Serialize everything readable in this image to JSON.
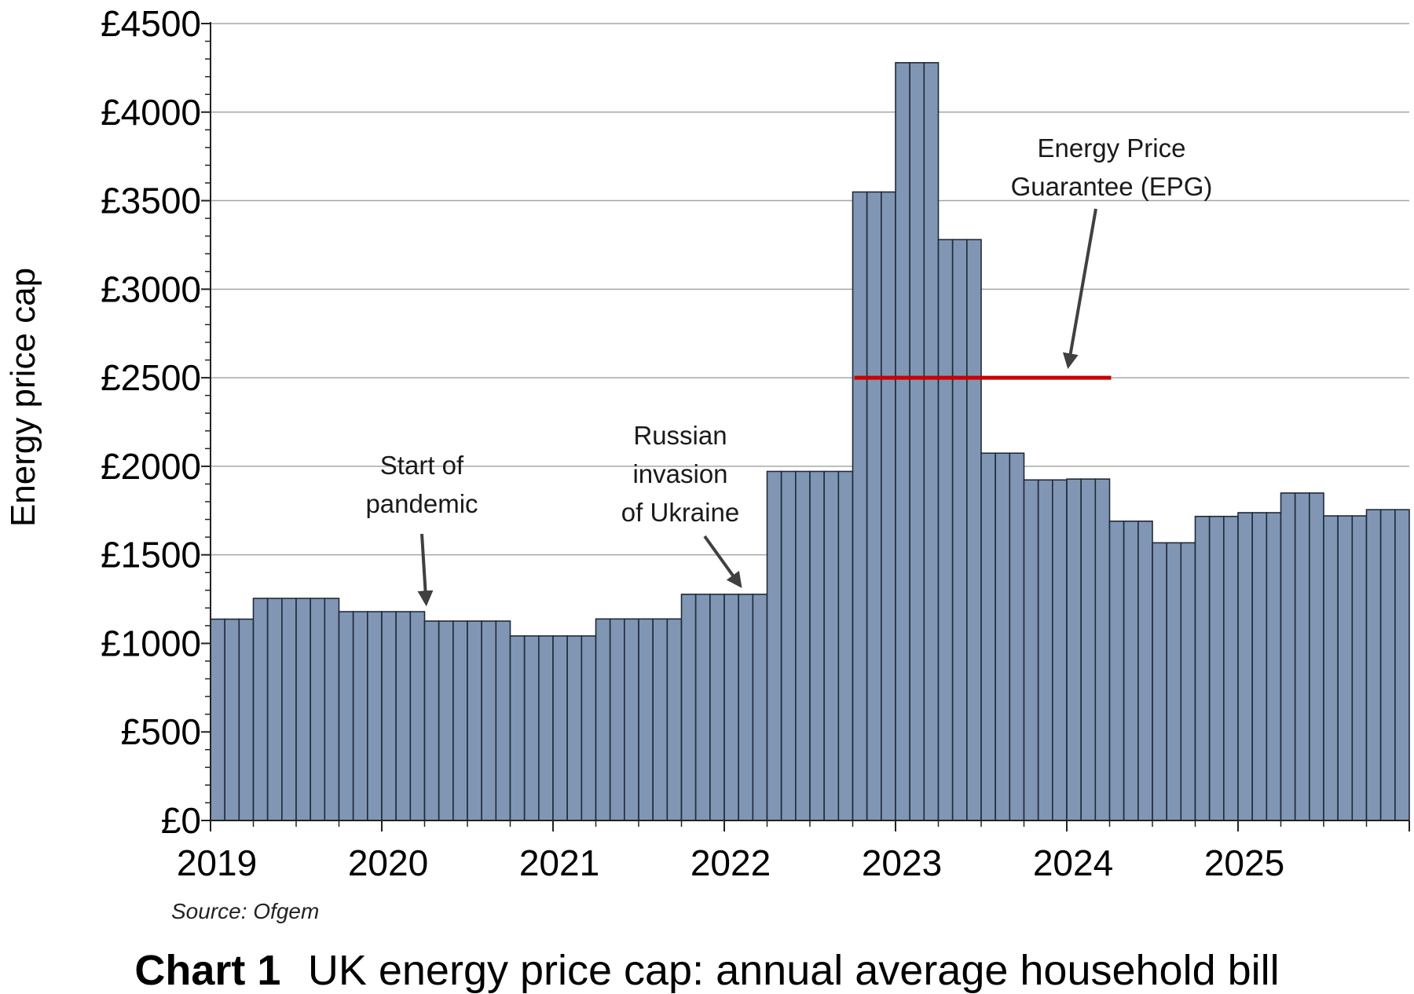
{
  "chart_data": {
    "type": "bar",
    "ylabel": "Energy price cap",
    "ylim": [
      0,
      4500
    ],
    "y_ticks": [
      {
        "value": 0,
        "label": "£0"
      },
      {
        "value": 500,
        "label": "£500"
      },
      {
        "value": 1000,
        "label": "£1000"
      },
      {
        "value": 1500,
        "label": "£1500"
      },
      {
        "value": 2000,
        "label": "£2000"
      },
      {
        "value": 2500,
        "label": "£2500"
      },
      {
        "value": 3000,
        "label": "£3000"
      },
      {
        "value": 3500,
        "label": "£3500"
      },
      {
        "value": 4000,
        "label": "£4000"
      },
      {
        "value": 4500,
        "label": "£4500"
      }
    ],
    "x_labels": [
      "2019",
      "2020",
      "2021",
      "2022",
      "2023",
      "2024",
      "2025"
    ],
    "x_start": "2019-01",
    "bar_color": "#8096b4",
    "grid": true,
    "periods": [
      {
        "start": "2019-01",
        "months": 3,
        "value": 1137
      },
      {
        "start": "2019-04",
        "months": 6,
        "value": 1254
      },
      {
        "start": "2019-10",
        "months": 6,
        "value": 1179
      },
      {
        "start": "2020-04",
        "months": 6,
        "value": 1126
      },
      {
        "start": "2020-10",
        "months": 6,
        "value": 1042
      },
      {
        "start": "2021-04",
        "months": 6,
        "value": 1138
      },
      {
        "start": "2021-10",
        "months": 6,
        "value": 1277
      },
      {
        "start": "2022-04",
        "months": 6,
        "value": 1971
      },
      {
        "start": "2022-10",
        "months": 3,
        "value": 3549
      },
      {
        "start": "2023-01",
        "months": 3,
        "value": 4279
      },
      {
        "start": "2023-04",
        "months": 3,
        "value": 3280
      },
      {
        "start": "2023-07",
        "months": 3,
        "value": 2074
      },
      {
        "start": "2023-10",
        "months": 3,
        "value": 1923
      },
      {
        "start": "2024-01",
        "months": 3,
        "value": 1928
      },
      {
        "start": "2024-04",
        "months": 3,
        "value": 1690
      },
      {
        "start": "2024-07",
        "months": 3,
        "value": 1568
      },
      {
        "start": "2024-10",
        "months": 3,
        "value": 1717
      },
      {
        "start": "2025-01",
        "months": 3,
        "value": 1738
      },
      {
        "start": "2025-04",
        "months": 3,
        "value": 1849
      },
      {
        "start": "2025-07",
        "months": 3,
        "value": 1720
      },
      {
        "start": "2025-10",
        "months": 3,
        "value": 1755
      }
    ],
    "epg_line": {
      "start": "2022-10",
      "end": "2024-04",
      "value": 2500,
      "color": "#cc0000"
    },
    "annotations": [
      {
        "name": "annotation-pandemic",
        "lines": [
          "Start of",
          "pandemic"
        ],
        "target_date": "2020-04",
        "target_value": 1200
      },
      {
        "name": "annotation-ukraine",
        "lines": [
          "Russian",
          "invasion",
          "of Ukraine"
        ],
        "target_date": "2022-02",
        "target_value": 1300
      },
      {
        "name": "annotation-epg",
        "lines": [
          "Energy Price",
          "Guarantee (EPG)"
        ],
        "target_date": "2024-01",
        "target_value": 2540
      }
    ],
    "source": "Source: Ofgem",
    "caption_bold": "Chart 1",
    "caption": "UK energy price cap: annual average household bill"
  }
}
